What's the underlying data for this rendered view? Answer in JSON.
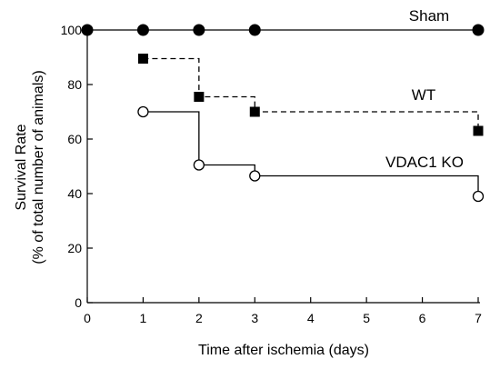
{
  "chart_data": {
    "type": "line",
    "step": true,
    "title": "",
    "xlabel": "Time after ischemia (days)",
    "ylabel": "Survival Rate",
    "ylabel_sub": "(% of total number of animals)",
    "xlim": [
      0,
      7
    ],
    "ylim": [
      0,
      100
    ],
    "xticks": [
      0,
      1,
      2,
      3,
      4,
      5,
      6,
      7
    ],
    "yticks": [
      0,
      20,
      40,
      60,
      80,
      100
    ],
    "grid": false,
    "series": [
      {
        "name": "Sham",
        "marker": "filled-circle",
        "linestyle": "solid",
        "color": "#000000",
        "x": [
          0,
          1,
          2,
          3,
          7
        ],
        "y": [
          100,
          100,
          100,
          100,
          100
        ]
      },
      {
        "name": "WT",
        "marker": "filled-square",
        "linestyle": "dashed",
        "color": "#000000",
        "x": [
          1,
          2,
          3,
          7
        ],
        "y": [
          89.5,
          75.5,
          70,
          63
        ]
      },
      {
        "name": "VDAC1 KO",
        "marker": "open-circle",
        "linestyle": "solid",
        "color": "#000000",
        "x": [
          1,
          2,
          3,
          7
        ],
        "y": [
          70,
          50.5,
          46.5,
          39
        ]
      }
    ]
  }
}
